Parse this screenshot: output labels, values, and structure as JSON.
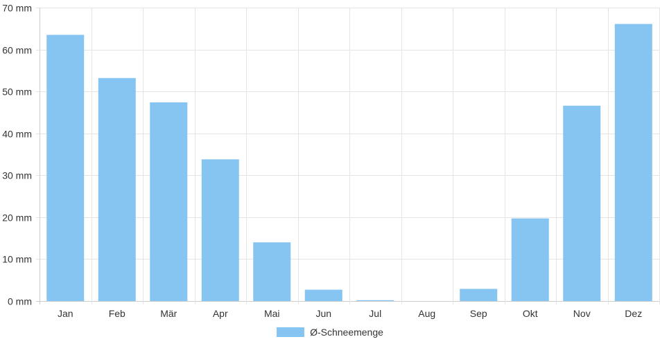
{
  "chart_data": {
    "type": "bar",
    "categories": [
      "Jan",
      "Feb",
      "Mär",
      "Apr",
      "Mai",
      "Jun",
      "Jul",
      "Aug",
      "Sep",
      "Okt",
      "Nov",
      "Dez"
    ],
    "series": [
      {
        "name": "Ø-Schneemenge",
        "values": [
          63.5,
          53.2,
          47.4,
          33.8,
          14.0,
          2.7,
          0.2,
          0,
          2.9,
          19.7,
          46.6,
          66.1
        ],
        "color": "#86c5f2"
      }
    ],
    "ylim": [
      0,
      70
    ],
    "yticks": [
      0,
      10,
      20,
      30,
      40,
      50,
      60,
      70
    ],
    "ytick_suffix": " mm",
    "grid": true,
    "legend_position": "bottom",
    "title": "",
    "xlabel": "",
    "ylabel": ""
  }
}
